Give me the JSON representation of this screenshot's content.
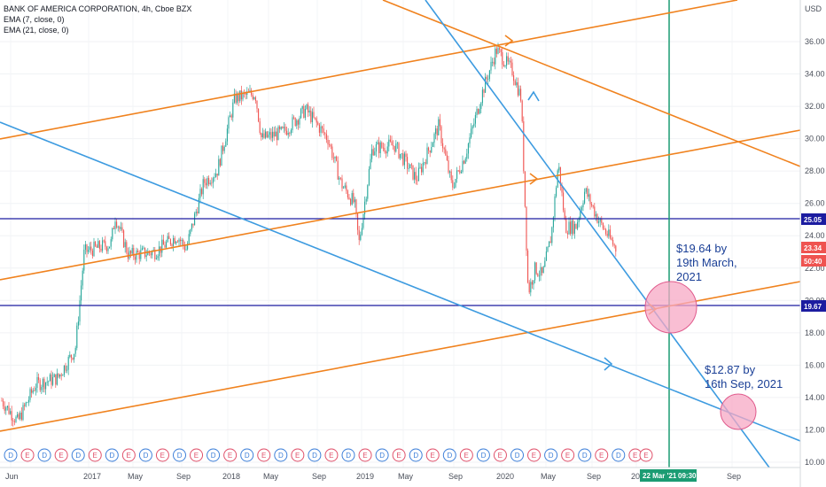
{
  "legend": {
    "symbol": "BANK OF AMERICA CORPORATION, 4h, Cboe BZX",
    "ema1": "EMA (7, close, 0)",
    "ema2": "EMA (21, close, 0)"
  },
  "currency": "USD",
  "price_ticks": [
    "36.00",
    "34.00",
    "32.00",
    "30.00",
    "28.00",
    "26.00",
    "24.00",
    "22.00",
    "20.00",
    "18.00",
    "16.00",
    "14.00",
    "12.00",
    "10.00"
  ],
  "time_ticks": [
    "Jun",
    "2017",
    "May",
    "Sep",
    "2018",
    "May",
    "Sep",
    "2019",
    "May",
    "Sep",
    "2020",
    "May",
    "Sep",
    "202",
    "Sep"
  ],
  "badges": {
    "upper_level": "25.05",
    "current_price": "23.34",
    "countdown": "50:40",
    "lower_level": "19.67"
  },
  "crosshair_time": {
    "date": "22 Mar '21",
    "time": "09:30"
  },
  "annotations": {
    "first": [
      "$19.64 by",
      "19th March,",
      "2021"
    ],
    "second": [
      "$12.87 by",
      "16th Sep, 2021"
    ]
  },
  "events": [
    "D",
    "E",
    "D",
    "E",
    "D",
    "E",
    "D",
    "E",
    "D",
    "E",
    "D",
    "E",
    "D",
    "E",
    "D",
    "E",
    "D",
    "E",
    "D",
    "E",
    "D",
    "E",
    "D",
    "E",
    "D",
    "E",
    "D",
    "E",
    "D",
    "E",
    "D",
    "E",
    "D",
    "E",
    "D",
    "E",
    "D",
    "E",
    "E"
  ],
  "colors": {
    "orange": "#f0821e",
    "blue": "#3d9be0",
    "navy": "#1c1ca0",
    "teal": "#1b9c73",
    "candle_up": "#26a69a",
    "candle_down": "#ef5350",
    "circle_fill": "#f7a8c4",
    "circle_stroke": "#e05a8c",
    "annotation_text": "#1a3f96"
  }
}
